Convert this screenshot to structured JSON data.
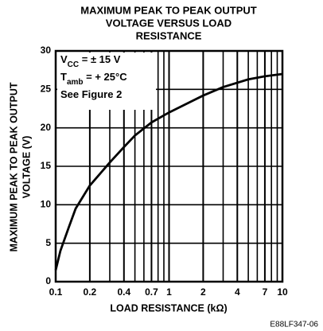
{
  "chart_data": {
    "type": "line",
    "title": [
      "MAXIMUM PEAK TO PEAK OUTPUT",
      "VOLTAGE VERSUS LOAD",
      "RESISTANCE"
    ],
    "ylabel": [
      "MAXIMUM PEAK TO PEAK OUTPUT",
      "VOLTAGE (V)"
    ],
    "xlabel": "LOAD RESISTANCE (kΩ)",
    "annotations": [
      [
        "V",
        "CC",
        " = ± 15 V"
      ],
      [
        "T",
        "amb",
        " = + 25°C"
      ],
      [
        "See Figure 2"
      ]
    ],
    "footnote": "E88LF347-06",
    "xscale": "log",
    "xlim": [
      0.1,
      10
    ],
    "ylim": [
      0,
      30
    ],
    "xticks": [
      0.1,
      0.2,
      0.4,
      0.7,
      1,
      2,
      4,
      7,
      10
    ],
    "x_minor_grid": [
      0.3,
      0.5,
      0.6,
      0.8,
      0.9,
      3,
      5,
      6,
      8,
      9
    ],
    "yticks": [
      0,
      5,
      10,
      15,
      20,
      25,
      30
    ],
    "grid": true,
    "color": "#000000",
    "x": [
      0.1,
      0.11,
      0.13,
      0.15,
      0.2,
      0.3,
      0.4,
      0.5,
      0.7,
      1,
      2,
      3,
      5,
      7,
      10
    ],
    "values": [
      1.5,
      4,
      7,
      9.5,
      12.5,
      15.5,
      17.5,
      19,
      20.7,
      22,
      24.2,
      25.3,
      26.3,
      26.7,
      27
    ]
  }
}
